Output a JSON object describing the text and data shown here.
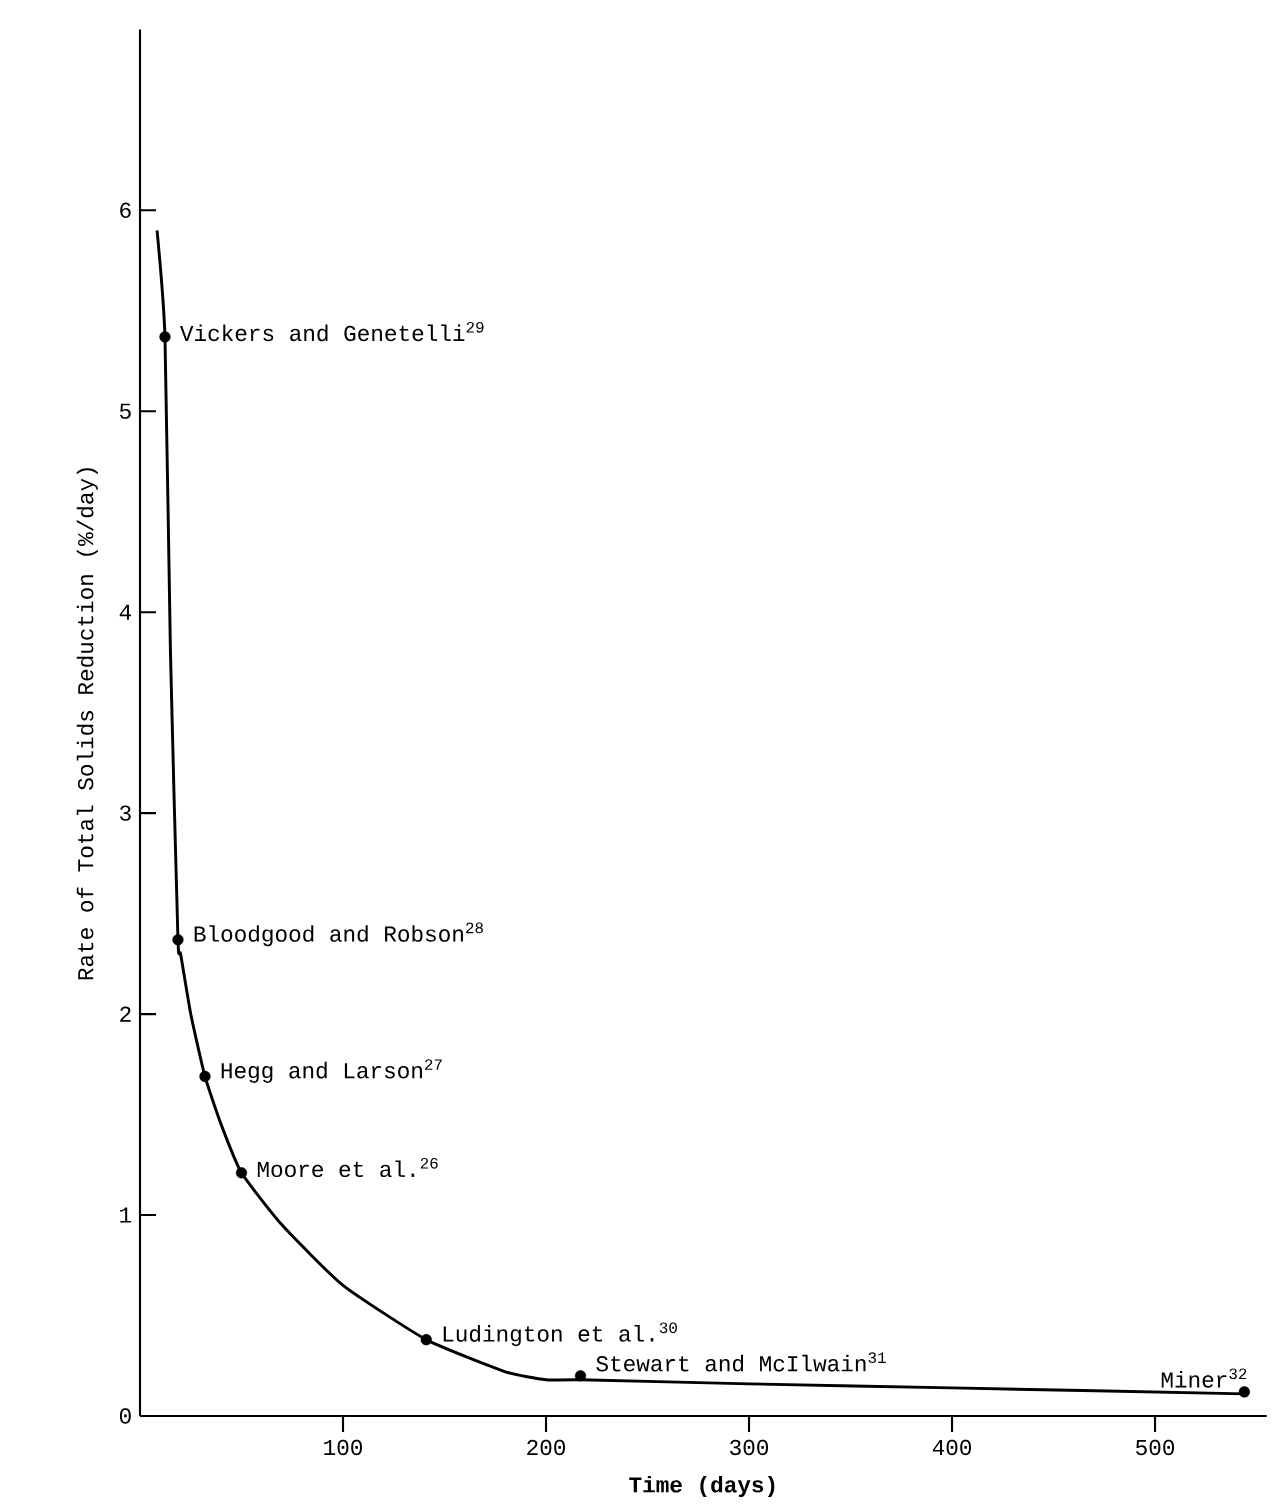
{
  "chart_data": {
    "type": "scatter",
    "xlabel": "Time (days)",
    "ylabel": "Rate of Total Solids Reduction (%/day)",
    "xlim": [
      0,
      555
    ],
    "ylim": [
      0,
      6.9
    ],
    "xticks": [
      100,
      200,
      300,
      400,
      500
    ],
    "yticks": [
      0,
      1,
      2,
      3,
      4,
      5,
      6
    ],
    "grid": false,
    "series": [
      {
        "type": "scatter",
        "marker": "circle",
        "color": "#000000",
        "x": [
          12.3,
          18.7,
          32,
          50,
          141,
          217,
          544
        ],
        "values": [
          5.37,
          2.37,
          1.69,
          1.21,
          0.38,
          0.2,
          0.12
        ]
      },
      {
        "type": "line",
        "color": "#000000",
        "line_style": "solid",
        "x": [
          8.4,
          12.3,
          15,
          18.7,
          20,
          25,
          32,
          40,
          50,
          70,
          100,
          141,
          180,
          200,
          217,
          300,
          400,
          544
        ],
        "values": [
          5.9,
          5.37,
          3.8,
          2.37,
          2.3,
          2.0,
          1.69,
          1.45,
          1.21,
          0.95,
          0.65,
          0.38,
          0.22,
          0.18,
          0.18,
          0.16,
          0.14,
          0.11
        ]
      }
    ],
    "annotations": [
      {
        "text": "Vickers and Genetelli$^{29}$",
        "x": 12.3,
        "y": 5.37
      },
      {
        "text": "Bloodgood and Robson$^{28}$",
        "x": 18.7,
        "y": 2.37
      },
      {
        "text": "Hegg and Larson$^{27}$",
        "x": 32,
        "y": 1.69
      },
      {
        "text": "Moore et al.$^{26}$",
        "x": 50,
        "y": 1.21
      },
      {
        "text": "Ludington et al.$^{30}$",
        "x": 141,
        "y": 0.38
      },
      {
        "text": "Stewart and McIlwain$^{31}$",
        "x": 217,
        "y": 0.2
      },
      {
        "text": "Miner$^{32}$",
        "x": 544,
        "y": 0.12
      }
    ]
  }
}
